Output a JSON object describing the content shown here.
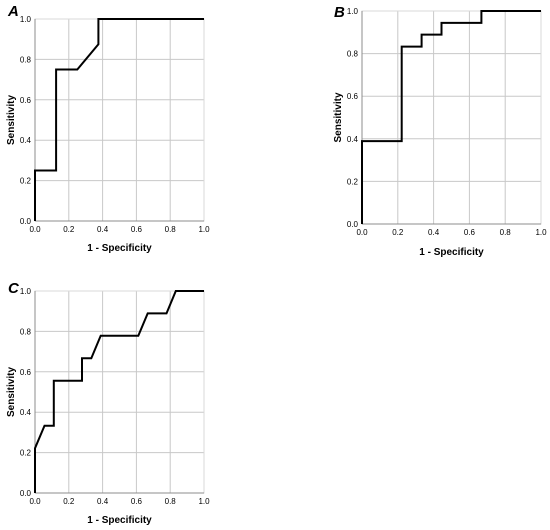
{
  "chart_data": [
    {
      "type": "line",
      "panel_label": "A",
      "xlabel": "1 - Specificity",
      "ylabel": "Sensitivity",
      "xlim": [
        0,
        1
      ],
      "ylim": [
        0,
        1
      ],
      "x_ticks": [
        "0.0",
        "0.2",
        "0.4",
        "0.6",
        "0.8",
        "1.0"
      ],
      "y_ticks": [
        "0.0",
        "0.2",
        "0.4",
        "0.6",
        "0.8",
        "1.0"
      ],
      "grid": true,
      "series": [
        {
          "x": [
            0,
            0,
            0.125,
            0.125,
            0.25,
            0.375,
            0.375,
            1.0
          ],
          "y": [
            0,
            0.25,
            0.25,
            0.75,
            0.75,
            0.875,
            1.0,
            1.0
          ]
        }
      ]
    },
    {
      "type": "line",
      "panel_label": "B",
      "xlabel": "1 - Specificity",
      "ylabel": "Sensitivity",
      "xlim": [
        0,
        1
      ],
      "ylim": [
        0,
        1
      ],
      "x_ticks": [
        "0.0",
        "0.2",
        "0.4",
        "0.6",
        "0.8",
        "1.0"
      ],
      "y_ticks": [
        "0.0",
        "0.2",
        "0.4",
        "0.6",
        "0.8",
        "1.0"
      ],
      "grid": true,
      "series": [
        {
          "x": [
            0,
            0,
            0.222,
            0.222,
            0.333,
            0.333,
            0.444,
            0.444,
            0.667,
            0.667,
            1.0
          ],
          "y": [
            0,
            0.389,
            0.389,
            0.833,
            0.833,
            0.889,
            0.889,
            0.944,
            0.944,
            1.0,
            1.0
          ]
        }
      ]
    },
    {
      "type": "line",
      "panel_label": "C",
      "xlabel": "1 - Specificity",
      "ylabel": "Sensitivity",
      "xlim": [
        0,
        1
      ],
      "ylim": [
        0,
        1
      ],
      "x_ticks": [
        "0.0",
        "0.2",
        "0.4",
        "0.6",
        "0.8",
        "1.0"
      ],
      "y_ticks": [
        "0.0",
        "0.2",
        "0.4",
        "0.6",
        "0.8",
        "1.0"
      ],
      "grid": true,
      "series": [
        {
          "x": [
            0,
            0,
            0.056,
            0.111,
            0.111,
            0.278,
            0.278,
            0.333,
            0.389,
            0.611,
            0.667,
            0.778,
            0.833,
            1.0
          ],
          "y": [
            0,
            0.222,
            0.333,
            0.333,
            0.556,
            0.556,
            0.667,
            0.667,
            0.778,
            0.778,
            0.889,
            0.889,
            1.0,
            1.0
          ]
        }
      ]
    }
  ]
}
